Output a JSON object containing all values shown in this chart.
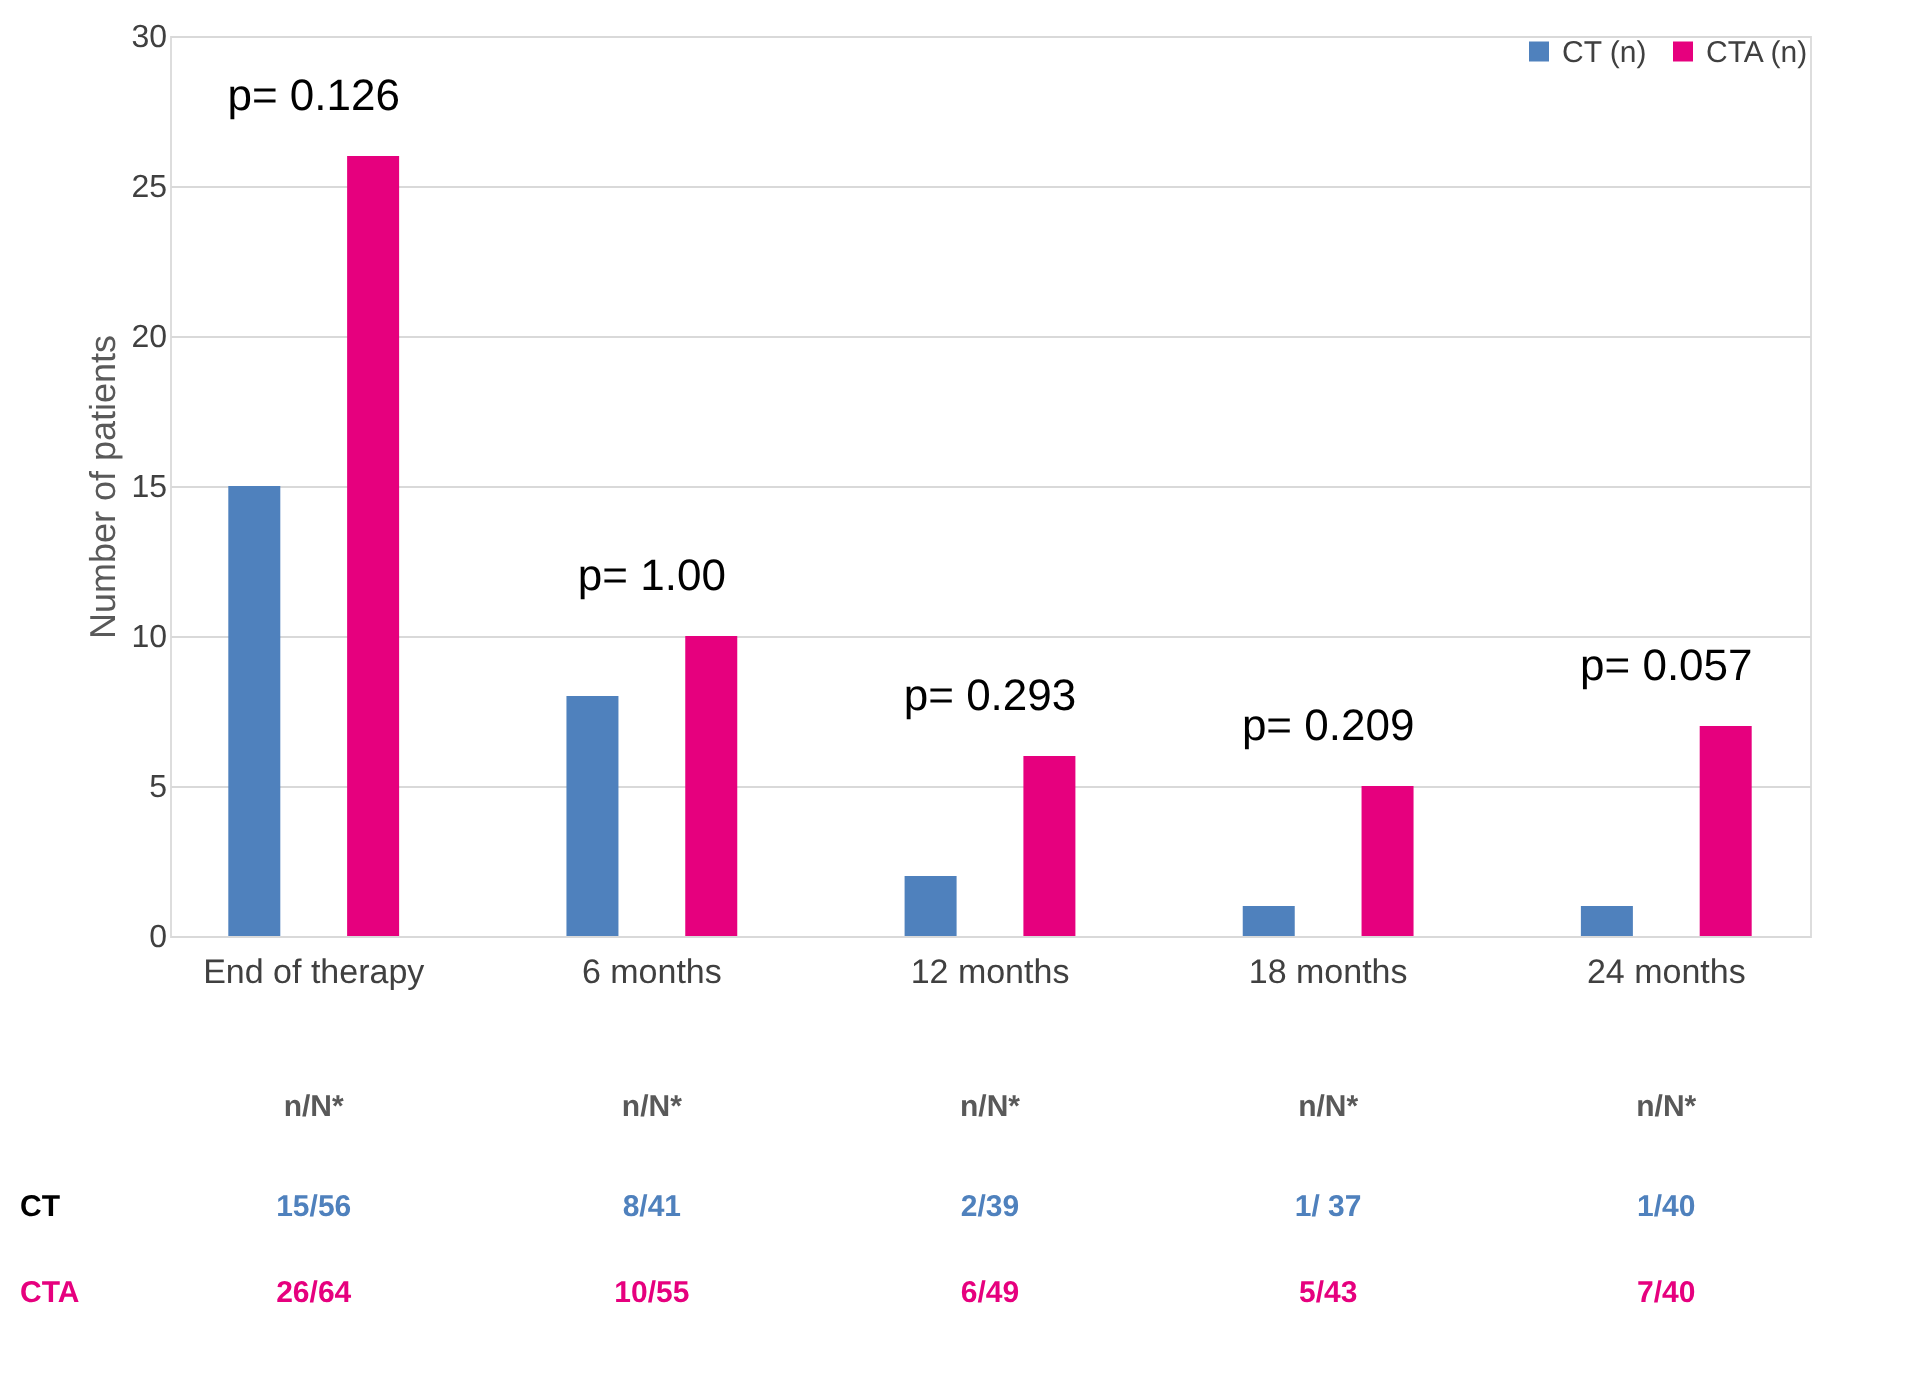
{
  "chart_data": {
    "type": "bar",
    "ylabel": "Number of patients",
    "categories": [
      "End of therapy",
      "6 months",
      "12 months",
      "18 months",
      "24 months"
    ],
    "series": [
      {
        "name": "CT (n)",
        "color": "#4f81bd",
        "values": [
          15,
          8,
          2,
          1,
          1
        ],
        "value_labels": [
          "15/56",
          "8/41",
          "2/39",
          "1/ 37",
          "1/40"
        ]
      },
      {
        "name": "CTA (n)",
        "color": "#e6007e",
        "values": [
          26,
          10,
          6,
          5,
          7
        ],
        "value_labels": [
          "26/64",
          "10/55",
          "6/49",
          "5/43",
          "7/40"
        ]
      }
    ],
    "ylim": [
      0,
      30
    ],
    "yticks": [
      0,
      5,
      10,
      15,
      20,
      25,
      30
    ],
    "grid": "y",
    "legend": "top right",
    "annotations": [
      "p= 0.126",
      "p= 1.00",
      "p= 0.293",
      "p= 0.209",
      "p= 0.057",
      "n/N*",
      "n/N*",
      "n/N*",
      "n/N*",
      "n/N*",
      "CT",
      "CTA"
    ]
  }
}
